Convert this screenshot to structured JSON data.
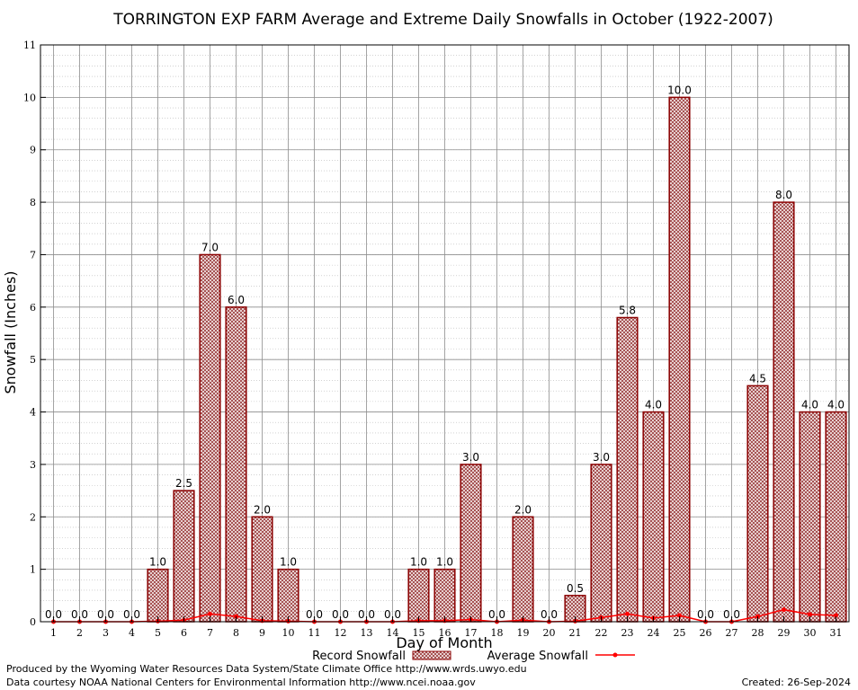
{
  "chart_data": {
    "type": "bar",
    "title": "TORRINGTON EXP FARM Average and Extreme Daily Snowfalls in October (1922-2007)",
    "xlabel": "Day of Month",
    "ylabel": "Snowfall (Inches)",
    "ylim": [
      0,
      11
    ],
    "yticks": [
      "0",
      "1",
      "2",
      "3",
      "4",
      "5",
      "6",
      "7",
      "8",
      "9",
      "10",
      "11"
    ],
    "categories": [
      "1",
      "2",
      "3",
      "4",
      "5",
      "6",
      "7",
      "8",
      "9",
      "10",
      "11",
      "12",
      "13",
      "14",
      "15",
      "16",
      "17",
      "18",
      "19",
      "20",
      "21",
      "22",
      "23",
      "24",
      "25",
      "26",
      "27",
      "28",
      "29",
      "30",
      "31"
    ],
    "grid": true,
    "legend_position": "bottom",
    "series": [
      {
        "name": "Record Snowfall",
        "type": "bar",
        "values": [
          0,
          0,
          0,
          0,
          1.0,
          2.5,
          7.0,
          6.0,
          2.0,
          1.0,
          0,
          0,
          0,
          0,
          1.0,
          1.0,
          3.0,
          0,
          2.0,
          0,
          0.5,
          3.0,
          5.8,
          4.0,
          10.0,
          0,
          0,
          4.5,
          8.0,
          4.0,
          4.0
        ],
        "labels": [
          "0.0",
          "0.0",
          "0.0",
          "0.0",
          "1.0",
          "2.5",
          "7.0",
          "6.0",
          "2.0",
          "1.0",
          "0.0",
          "0.0",
          "0.0",
          "0.0",
          "1.0",
          "1.0",
          "3.0",
          "0.0",
          "2.0",
          "0.0",
          "0.5",
          "3.0",
          "5.8",
          "4.0",
          "10.0",
          "0.0",
          "0.0",
          "4.5",
          "8.0",
          "4.0",
          "4.0"
        ],
        "color": "#8b0000"
      },
      {
        "name": "Average Snowfall",
        "type": "line",
        "values": [
          0,
          0,
          0,
          0,
          0.01,
          0.03,
          0.15,
          0.1,
          0.02,
          0.01,
          0,
          0,
          0,
          0,
          0.02,
          0.02,
          0.04,
          0,
          0.03,
          0,
          0.01,
          0.08,
          0.15,
          0.07,
          0.12,
          0,
          0,
          0.1,
          0.23,
          0.14,
          0.12
        ],
        "color": "#ff0000"
      }
    ]
  },
  "footer": {
    "produced_by": "Produced by the Wyoming Water Resources Data System/State Climate Office http://www.wrds.uwyo.edu",
    "data_courtesy": "Data courtesy NOAA National Centers for Environmental Information http://www.ncei.noaa.gov",
    "created": "Created:  26-Sep-2024"
  }
}
